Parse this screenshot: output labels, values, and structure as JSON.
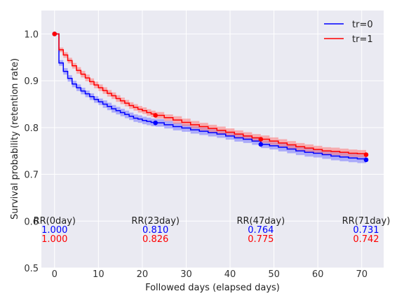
{
  "chart_data": {
    "type": "line",
    "subtype": "step-survival",
    "xlabel": "Followed days (elapsed days)",
    "ylabel": "Survival probability (retention rate)",
    "xlim": [
      -3,
      75
    ],
    "ylim": [
      0.5,
      1.05
    ],
    "xticks": [
      0,
      10,
      20,
      30,
      40,
      50,
      60,
      70
    ],
    "yticks": [
      0.5,
      0.6,
      0.7,
      0.8,
      0.9,
      1.0
    ],
    "grid": true,
    "legend_position": "top-right",
    "colors": {
      "background": "#eaeaf2",
      "grid": "#ffffff"
    },
    "series": [
      {
        "name": "tr=0",
        "color": "#0000ff",
        "band_color": "#7777ff",
        "points": [
          [
            0,
            1.0
          ],
          [
            1,
            0.938
          ],
          [
            2,
            0.92
          ],
          [
            3,
            0.905
          ],
          [
            4,
            0.893
          ],
          [
            5,
            0.885
          ],
          [
            6,
            0.878
          ],
          [
            7,
            0.872
          ],
          [
            8,
            0.866
          ],
          [
            9,
            0.86
          ],
          [
            10,
            0.855
          ],
          [
            11,
            0.85
          ],
          [
            12,
            0.845
          ],
          [
            13,
            0.84
          ],
          [
            14,
            0.836
          ],
          [
            15,
            0.832
          ],
          [
            16,
            0.828
          ],
          [
            17,
            0.824
          ],
          [
            18,
            0.82
          ],
          [
            19,
            0.818
          ],
          [
            20,
            0.815
          ],
          [
            21,
            0.813
          ],
          [
            22,
            0.811
          ],
          [
            23,
            0.81
          ],
          [
            25,
            0.806
          ],
          [
            27,
            0.802
          ],
          [
            29,
            0.799
          ],
          [
            31,
            0.795
          ],
          [
            33,
            0.792
          ],
          [
            35,
            0.789
          ],
          [
            37,
            0.786
          ],
          [
            39,
            0.782
          ],
          [
            41,
            0.778
          ],
          [
            43,
            0.775
          ],
          [
            45,
            0.771
          ],
          [
            47,
            0.764
          ],
          [
            49,
            0.761
          ],
          [
            51,
            0.758
          ],
          [
            53,
            0.754
          ],
          [
            55,
            0.75
          ],
          [
            57,
            0.747
          ],
          [
            59,
            0.745
          ],
          [
            61,
            0.742
          ],
          [
            63,
            0.739
          ],
          [
            65,
            0.737
          ],
          [
            67,
            0.735
          ],
          [
            69,
            0.733
          ],
          [
            71,
            0.731
          ]
        ],
        "ci_halfwidth": [
          0,
          0.006,
          0.007,
          0.007,
          0.007,
          0.007,
          0.007,
          0.007,
          0.007,
          0.007,
          0.007,
          0.008,
          0.008,
          0.008,
          0.008,
          0.008,
          0.008,
          0.008,
          0.008,
          0.008,
          0.008,
          0.008,
          0.008,
          0.008,
          0.008,
          0.008,
          0.008,
          0.008,
          0.008,
          0.008,
          0.008,
          0.008,
          0.008,
          0.008,
          0.008,
          0.008,
          0.008,
          0.009,
          0.009,
          0.009,
          0.009,
          0.009,
          0.009,
          0.009,
          0.009,
          0.009,
          0.009,
          0.009
        ]
      },
      {
        "name": "tr=1",
        "color": "#ff0000",
        "band_color": "#ff7777",
        "points": [
          [
            0,
            1.0
          ],
          [
            1,
            0.966
          ],
          [
            2,
            0.955
          ],
          [
            3,
            0.943
          ],
          [
            4,
            0.932
          ],
          [
            5,
            0.922
          ],
          [
            6,
            0.914
          ],
          [
            7,
            0.906
          ],
          [
            8,
            0.898
          ],
          [
            9,
            0.891
          ],
          [
            10,
            0.885
          ],
          [
            11,
            0.879
          ],
          [
            12,
            0.873
          ],
          [
            13,
            0.868
          ],
          [
            14,
            0.862
          ],
          [
            15,
            0.857
          ],
          [
            16,
            0.852
          ],
          [
            17,
            0.847
          ],
          [
            18,
            0.843
          ],
          [
            19,
            0.839
          ],
          [
            20,
            0.836
          ],
          [
            21,
            0.832
          ],
          [
            22,
            0.829
          ],
          [
            23,
            0.826
          ],
          [
            25,
            0.821
          ],
          [
            27,
            0.816
          ],
          [
            29,
            0.811
          ],
          [
            31,
            0.806
          ],
          [
            33,
            0.802
          ],
          [
            35,
            0.798
          ],
          [
            37,
            0.794
          ],
          [
            39,
            0.79
          ],
          [
            41,
            0.786
          ],
          [
            43,
            0.782
          ],
          [
            45,
            0.778
          ],
          [
            47,
            0.775
          ],
          [
            49,
            0.771
          ],
          [
            51,
            0.767
          ],
          [
            53,
            0.763
          ],
          [
            55,
            0.759
          ],
          [
            57,
            0.756
          ],
          [
            59,
            0.753
          ],
          [
            61,
            0.75
          ],
          [
            63,
            0.749
          ],
          [
            65,
            0.747
          ],
          [
            67,
            0.745
          ],
          [
            69,
            0.744
          ],
          [
            71,
            0.742
          ]
        ],
        "ci_halfwidth": [
          0,
          0.005,
          0.006,
          0.006,
          0.006,
          0.007,
          0.007,
          0.007,
          0.007,
          0.007,
          0.007,
          0.007,
          0.007,
          0.007,
          0.007,
          0.007,
          0.007,
          0.007,
          0.007,
          0.007,
          0.007,
          0.007,
          0.007,
          0.007,
          0.007,
          0.008,
          0.008,
          0.008,
          0.008,
          0.008,
          0.008,
          0.008,
          0.008,
          0.008,
          0.008,
          0.008,
          0.008,
          0.008,
          0.008,
          0.008,
          0.008,
          0.008,
          0.008,
          0.008,
          0.008,
          0.008,
          0.008,
          0.008
        ]
      }
    ],
    "markers": [
      {
        "series": 0,
        "x": 0,
        "y": 1.0
      },
      {
        "series": 0,
        "x": 23,
        "y": 0.81
      },
      {
        "series": 0,
        "x": 47,
        "y": 0.764
      },
      {
        "series": 0,
        "x": 71,
        "y": 0.731
      },
      {
        "series": 1,
        "x": 0,
        "y": 1.0
      },
      {
        "series": 1,
        "x": 23,
        "y": 0.826
      },
      {
        "series": 1,
        "x": 47,
        "y": 0.775
      },
      {
        "series": 1,
        "x": 71,
        "y": 0.742
      }
    ],
    "annotations": [
      {
        "x": 0,
        "label": "RR(0day)",
        "value0": "1.000",
        "value1": "1.000"
      },
      {
        "x": 23,
        "label": "RR(23day)",
        "value0": "0.810",
        "value1": "0.826"
      },
      {
        "x": 47,
        "label": "RR(47day)",
        "value0": "0.764",
        "value1": "0.775"
      },
      {
        "x": 71,
        "label": "RR(71day)",
        "value0": "0.731",
        "value1": "0.742"
      }
    ]
  }
}
